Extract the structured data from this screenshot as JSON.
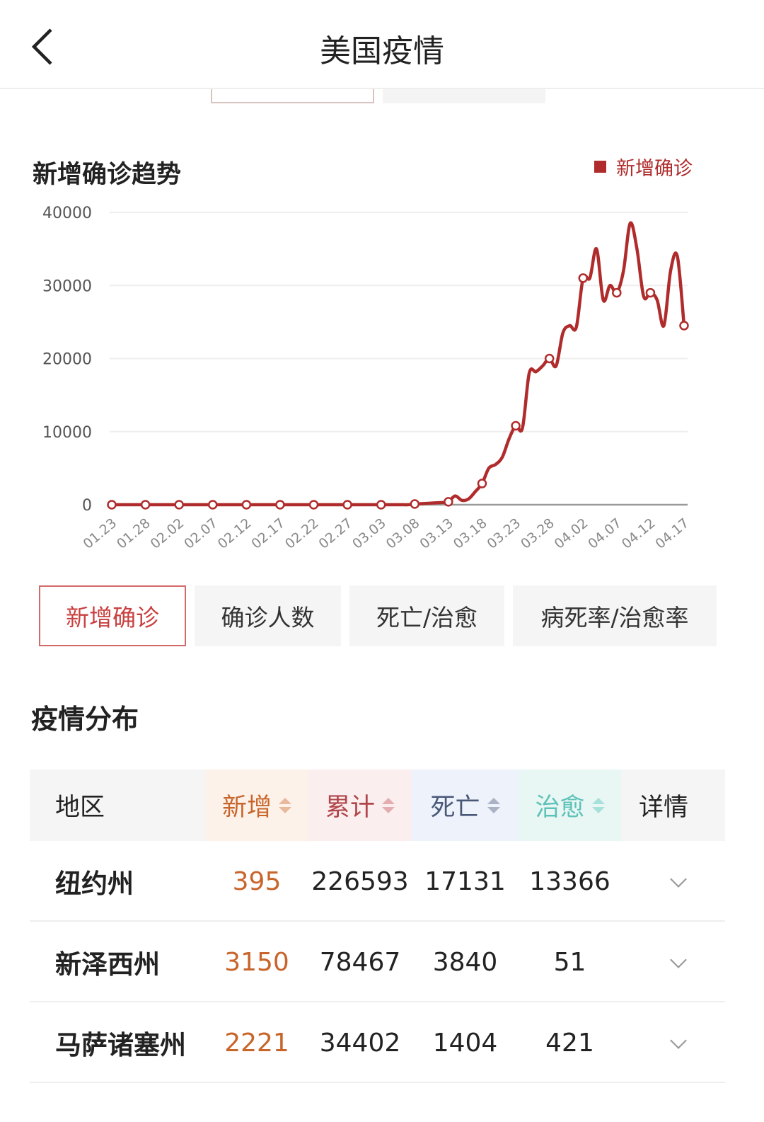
{
  "header": {
    "title": "美国疫情"
  },
  "chart_section": {
    "title": "新增确诊趋势"
  },
  "chart_data": {
    "type": "line",
    "title": "新增确诊趋势",
    "legend": {
      "entries": [
        "新增确诊"
      ],
      "placement": "top-right"
    },
    "series": [
      {
        "name": "新增确诊",
        "color": "#b02c2c",
        "start_date": "01.23",
        "values": [
          0,
          0,
          0,
          0,
          0,
          0,
          0,
          0,
          0,
          0,
          0,
          0,
          0,
          0,
          0,
          0,
          0,
          0,
          0,
          0,
          0,
          0,
          0,
          0,
          0,
          0,
          0,
          0,
          0,
          0,
          0,
          0,
          0,
          0,
          0,
          0,
          0,
          0,
          0,
          0,
          0,
          0,
          0,
          0,
          0,
          100,
          150,
          200,
          250,
          300,
          400,
          1200,
          600,
          800,
          1800,
          2900,
          5000,
          5500,
          6500,
          9000,
          10800,
          10500,
          18000,
          18200,
          19000,
          20000,
          19000,
          23500,
          24500,
          24300,
          31000,
          31000,
          35000,
          28000,
          30000,
          29000,
          32000,
          38500,
          35000,
          28500,
          29000,
          28000,
          24500,
          32000,
          34000,
          24500
        ]
      }
    ],
    "x_tick_labels": [
      "01.23",
      "01.28",
      "02.02",
      "02.07",
      "02.12",
      "02.17",
      "02.22",
      "02.27",
      "03.03",
      "03.08",
      "03.13",
      "03.18",
      "03.23",
      "03.28",
      "04.02",
      "04.07",
      "04.12",
      "04.17"
    ],
    "y_tick_labels": [
      "0",
      "10000",
      "20000",
      "30000",
      "40000"
    ],
    "ylim": [
      0,
      40000
    ],
    "grid": true
  },
  "chart_tabs": [
    {
      "label": "新增确诊",
      "active": true
    },
    {
      "label": "确诊人数"
    },
    {
      "label": "死亡/治愈"
    },
    {
      "label": "病死率/治愈率"
    }
  ],
  "distribution": {
    "title": "疫情分布",
    "headers": {
      "region": "地区",
      "new": "新增",
      "total": "累计",
      "death": "死亡",
      "cured": "治愈",
      "detail": "详情"
    },
    "rows": [
      {
        "region": "纽约州",
        "new": "395",
        "total": "226593",
        "death": "17131",
        "cured": "13366"
      },
      {
        "region": "新泽西州",
        "new": "3150",
        "total": "78467",
        "death": "3840",
        "cured": "51"
      },
      {
        "region": "马萨诸塞州",
        "new": "2221",
        "total": "34402",
        "death": "1404",
        "cured": "421"
      }
    ]
  },
  "colors": {
    "accent": "#b02c2c",
    "new": "#c8652b",
    "total": "#b0454a",
    "death": "#4a5878",
    "cured": "#5ec2b8"
  }
}
